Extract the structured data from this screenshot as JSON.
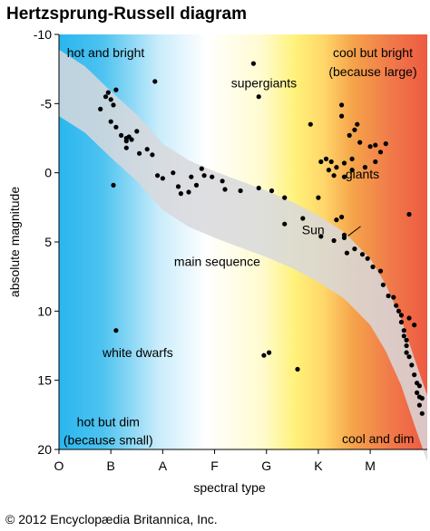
{
  "title": "Hertzsprung-Russell diagram",
  "copyright": "© 2012 Encyclopædia Britannica, Inc.",
  "chart_data": {
    "type": "scatter",
    "xlabel": "spectral type",
    "ylabel": "absolute magnitude",
    "x_categories": [
      "O",
      "B",
      "A",
      "F",
      "G",
      "K",
      "M"
    ],
    "xlim": [
      0,
      7.1
    ],
    "ylim": [
      20,
      -10
    ],
    "yticks": [
      -10,
      -5,
      0,
      5,
      10,
      15,
      20
    ],
    "grid": false,
    "background_gradient": [
      "#29b6ee",
      "#ffffff",
      "#fff27a",
      "#f5a24a",
      "#ee5a42"
    ],
    "band_color": "#d8d8dc",
    "point_color": "#000000",
    "annotations": [
      {
        "text": "hot and bright",
        "x": 0.9,
        "y": -8.7
      },
      {
        "text": "cool but bright",
        "x": 6.05,
        "y": -8.7
      },
      {
        "text": "(because large)",
        "x": 6.05,
        "y": -7.3
      },
      {
        "text": "supergiants",
        "x": 3.95,
        "y": -6.5
      },
      {
        "text": "giants",
        "x": 5.85,
        "y": 0.1
      },
      {
        "text": "Sun",
        "x": 4.9,
        "y": 4.1
      },
      {
        "text": "main sequence",
        "x": 3.05,
        "y": 6.4
      },
      {
        "text": "white dwarfs",
        "x": 1.52,
        "y": 13.0
      },
      {
        "text": "hot but dim",
        "x": 0.95,
        "y": 18.0
      },
      {
        "text": "(because small)",
        "x": 0.95,
        "y": 19.3
      },
      {
        "text": "cool and dim",
        "x": 6.15,
        "y": 19.2
      }
    ],
    "main_sequence_band": [
      [
        0.0,
        -6.5
      ],
      [
        0.5,
        -5.3
      ],
      [
        1.0,
        -3.5
      ],
      [
        1.5,
        -1.8
      ],
      [
        2.0,
        0.3
      ],
      [
        2.5,
        1.5
      ],
      [
        3.0,
        2.3
      ],
      [
        3.5,
        3.0
      ],
      [
        4.0,
        3.7
      ],
      [
        4.5,
        4.5
      ],
      [
        5.0,
        5.5
      ],
      [
        5.5,
        6.7
      ],
      [
        6.0,
        8.6
      ],
      [
        6.3,
        10.5
      ],
      [
        6.6,
        13.0
      ],
      [
        6.85,
        15.8
      ],
      [
        7.1,
        18.5
      ]
    ],
    "stars": [
      {
        "x": 0.8,
        "y": -4.6
      },
      {
        "x": 0.9,
        "y": -5.5
      },
      {
        "x": 0.95,
        "y": -5.8
      },
      {
        "x": 1.0,
        "y": -5.3
      },
      {
        "x": 1.05,
        "y": -4.9
      },
      {
        "x": 1.1,
        "y": -6.0
      },
      {
        "x": 1.0,
        "y": -3.7
      },
      {
        "x": 1.1,
        "y": -3.3
      },
      {
        "x": 1.2,
        "y": -2.7
      },
      {
        "x": 1.3,
        "y": -2.5
      },
      {
        "x": 1.35,
        "y": -2.6
      },
      {
        "x": 1.3,
        "y": -2.3
      },
      {
        "x": 1.4,
        "y": -2.4
      },
      {
        "x": 1.5,
        "y": -3.0
      },
      {
        "x": 1.3,
        "y": -1.8
      },
      {
        "x": 1.05,
        "y": 0.9
      },
      {
        "x": 1.55,
        "y": -1.4
      },
      {
        "x": 1.7,
        "y": -1.7
      },
      {
        "x": 1.8,
        "y": -1.3
      },
      {
        "x": 1.85,
        "y": -6.6
      },
      {
        "x": 1.9,
        "y": 0.2
      },
      {
        "x": 2.0,
        "y": 0.4
      },
      {
        "x": 2.2,
        "y": 0.0
      },
      {
        "x": 2.3,
        "y": 1.0
      },
      {
        "x": 2.35,
        "y": 1.5
      },
      {
        "x": 2.5,
        "y": 1.4
      },
      {
        "x": 2.55,
        "y": 0.3
      },
      {
        "x": 2.65,
        "y": 0.9
      },
      {
        "x": 2.75,
        "y": -0.3
      },
      {
        "x": 2.8,
        "y": 0.2
      },
      {
        "x": 2.95,
        "y": 0.3
      },
      {
        "x": 3.15,
        "y": 0.6
      },
      {
        "x": 3.2,
        "y": 1.2
      },
      {
        "x": 3.5,
        "y": 1.3
      },
      {
        "x": 3.75,
        "y": -7.9
      },
      {
        "x": 3.85,
        "y": -5.5
      },
      {
        "x": 3.85,
        "y": 1.1
      },
      {
        "x": 4.1,
        "y": 1.3
      },
      {
        "x": 4.35,
        "y": 1.8
      },
      {
        "x": 4.35,
        "y": 3.7
      },
      {
        "x": 4.7,
        "y": 3.3
      },
      {
        "x": 5.05,
        "y": 4.6
      },
      {
        "x": 5.3,
        "y": 4.9
      },
      {
        "x": 5.35,
        "y": 3.4
      },
      {
        "x": 5.5,
        "y": 4.7
      },
      {
        "x": 5.45,
        "y": -4.9
      },
      {
        "x": 5.45,
        "y": -4.1
      },
      {
        "x": 5.5,
        "y": 4.5
      },
      {
        "x": 5.0,
        "y": 1.8
      },
      {
        "x": 4.85,
        "y": -3.5
      },
      {
        "x": 5.45,
        "y": 3.2
      },
      {
        "x": 5.55,
        "y": 5.8
      },
      {
        "x": 5.7,
        "y": 5.5
      },
      {
        "x": 5.85,
        "y": 5.9
      },
      {
        "x": 5.95,
        "y": 6.2
      },
      {
        "x": 6.05,
        "y": 6.8
      },
      {
        "x": 6.2,
        "y": 7.1
      },
      {
        "x": 6.25,
        "y": 8.1
      },
      {
        "x": 6.35,
        "y": 8.9
      },
      {
        "x": 6.45,
        "y": 9.0
      },
      {
        "x": 6.5,
        "y": 9.6
      },
      {
        "x": 6.55,
        "y": 10.0
      },
      {
        "x": 6.6,
        "y": 10.3
      },
      {
        "x": 6.6,
        "y": 10.8
      },
      {
        "x": 6.65,
        "y": 11.4
      },
      {
        "x": 6.65,
        "y": 11.8
      },
      {
        "x": 6.7,
        "y": 12.1
      },
      {
        "x": 6.7,
        "y": 12.5
      },
      {
        "x": 6.75,
        "y": 13.3
      },
      {
        "x": 6.8,
        "y": 13.9
      },
      {
        "x": 6.85,
        "y": 14.6
      },
      {
        "x": 6.9,
        "y": 15.2
      },
      {
        "x": 6.9,
        "y": 15.9
      },
      {
        "x": 6.95,
        "y": 16.2
      },
      {
        "x": 6.95,
        "y": 16.8
      },
      {
        "x": 7.0,
        "y": 17.4
      },
      {
        "x": 6.85,
        "y": 11.0
      },
      {
        "x": 6.7,
        "y": 13.0
      },
      {
        "x": 6.75,
        "y": 10.5
      },
      {
        "x": 6.95,
        "y": 15.4
      },
      {
        "x": 7.0,
        "y": 16.3
      },
      {
        "x": 5.05,
        "y": -0.8
      },
      {
        "x": 5.15,
        "y": -1.0
      },
      {
        "x": 5.25,
        "y": -0.8
      },
      {
        "x": 5.35,
        "y": -0.4
      },
      {
        "x": 5.2,
        "y": -0.2
      },
      {
        "x": 5.3,
        "y": 0.2
      },
      {
        "x": 5.5,
        "y": 0.3
      },
      {
        "x": 5.65,
        "y": -1.0
      },
      {
        "x": 5.75,
        "y": -3.5
      },
      {
        "x": 5.8,
        "y": -2.2
      },
      {
        "x": 5.6,
        "y": -2.7
      },
      {
        "x": 5.9,
        "y": -0.4
      },
      {
        "x": 6.0,
        "y": -1.9
      },
      {
        "x": 6.1,
        "y": -2.0
      },
      {
        "x": 6.2,
        "y": -1.5
      },
      {
        "x": 6.3,
        "y": -2.1
      },
      {
        "x": 6.1,
        "y": -0.8
      },
      {
        "x": 5.5,
        "y": -0.7
      },
      {
        "x": 5.7,
        "y": -3.1
      },
      {
        "x": 5.65,
        "y": -0.2
      },
      {
        "x": 6.75,
        "y": 3.0
      },
      {
        "x": 1.1,
        "y": 11.4
      },
      {
        "x": 3.95,
        "y": 13.2
      },
      {
        "x": 4.05,
        "y": 13.0
      },
      {
        "x": 4.6,
        "y": 14.2
      }
    ]
  }
}
